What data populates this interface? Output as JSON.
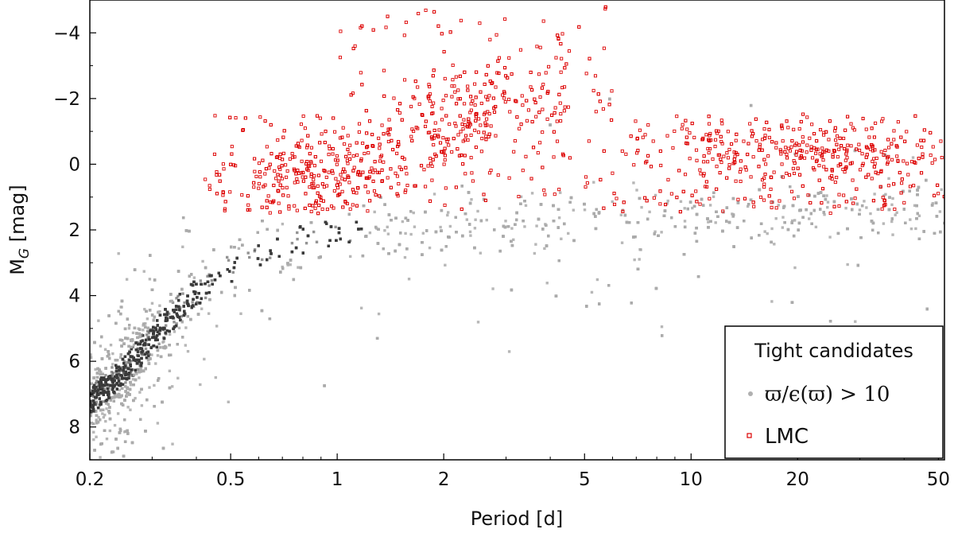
{
  "chart_data": {
    "type": "scatter",
    "xlabel": "Period  [d]",
    "ylabel_main": "M",
    "ylabel_sub": "G",
    "ylabel_unit": " [mag]",
    "xscale": "log",
    "xlim": [
      0.2,
      52
    ],
    "ylim": [
      9,
      -5
    ],
    "y_inverted": true,
    "grid": false,
    "x_ticks": [
      {
        "value": 0.2,
        "label": "0.2"
      },
      {
        "value": 0.5,
        "label": "0.5"
      },
      {
        "value": 1,
        "label": "1"
      },
      {
        "value": 2,
        "label": "2"
      },
      {
        "value": 5,
        "label": "5"
      },
      {
        "value": 10,
        "label": "10"
      },
      {
        "value": 20,
        "label": "20"
      },
      {
        "value": 50,
        "label": "50"
      }
    ],
    "y_ticks": [
      {
        "value": -4,
        "label": "−4"
      },
      {
        "value": -2,
        "label": "−2"
      },
      {
        "value": 0,
        "label": "0"
      },
      {
        "value": 2,
        "label": "2"
      },
      {
        "value": 4,
        "label": "4"
      },
      {
        "value": 6,
        "label": "6"
      },
      {
        "value": 8,
        "label": "8"
      }
    ],
    "legend": {
      "title": "Tight candidates",
      "placement": "bottom-right",
      "entries": [
        {
          "label": "ϖ/ϵ(ϖ) > 10",
          "marker": "filled-circle",
          "color": "#b0b0b0"
        },
        {
          "label": "LMC",
          "marker": "open-square",
          "color": "#dd0000"
        }
      ]
    },
    "series": [
      {
        "name": "ϖ/ϵ(ϖ) > 10",
        "color": "#a9a9a9",
        "density_color": "#2e2e2e",
        "trend": [
          {
            "x": 0.2,
            "y": 7.2
          },
          {
            "x": 0.25,
            "y": 6.3
          },
          {
            "x": 0.3,
            "y": 5.3
          },
          {
            "x": 0.35,
            "y": 4.5
          },
          {
            "x": 0.4,
            "y": 3.9
          },
          {
            "x": 0.5,
            "y": 3.2
          },
          {
            "x": 0.6,
            "y": 2.8
          },
          {
            "x": 0.8,
            "y": 2.3
          },
          {
            "x": 1.0,
            "y": 2.1
          },
          {
            "x": 2.0,
            "y": 1.9
          },
          {
            "x": 5.0,
            "y": 1.8
          },
          {
            "x": 10.0,
            "y": 1.6
          },
          {
            "x": 20.0,
            "y": 1.5
          },
          {
            "x": 50.0,
            "y": 1.2
          }
        ]
      },
      {
        "name": "LMC",
        "color": "#dd0000",
        "region": "x 0.5–50, y −5 to 1.5",
        "clusters": [
          {
            "x": 0.8,
            "y": 0.7
          },
          {
            "x": 1.1,
            "y": 0.2
          },
          {
            "x": 2.0,
            "y": -1.0
          },
          {
            "x": 3.0,
            "y": -2.0
          },
          {
            "x": 15.0,
            "y": -0.4
          },
          {
            "x": 30.0,
            "y": -0.2
          }
        ]
      }
    ]
  }
}
